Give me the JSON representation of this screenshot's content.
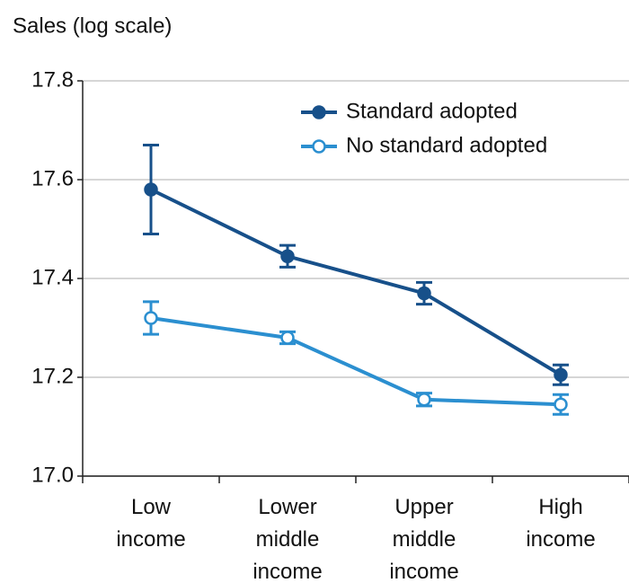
{
  "chart_data": {
    "type": "line",
    "y_axis_label": "Sales (log scale)",
    "categories": [
      "Low income",
      "Lower middle income",
      "Upper middle income",
      "High income"
    ],
    "series": [
      {
        "name": "Standard adopted",
        "color": "#17508a",
        "marker": "filled",
        "values": [
          17.58,
          17.445,
          17.37,
          17.205
        ],
        "errors": [
          0.09,
          0.022,
          0.022,
          0.02
        ]
      },
      {
        "name": "No standard adopted",
        "color": "#2b8fd0",
        "marker": "open",
        "values": [
          17.32,
          17.28,
          17.155,
          17.145
        ],
        "errors": [
          0.033,
          0.012,
          0.013,
          0.02
        ]
      }
    ],
    "ylim": [
      17.0,
      17.8
    ],
    "yticks": [
      {
        "value": 17.0,
        "label": "17.0"
      },
      {
        "value": 17.2,
        "label": "17.2"
      },
      {
        "value": 17.4,
        "label": "17.4"
      },
      {
        "value": 17.6,
        "label": "17.6"
      },
      {
        "value": 17.8,
        "label": "17.8"
      }
    ],
    "grid": true,
    "legend": "upper right"
  }
}
